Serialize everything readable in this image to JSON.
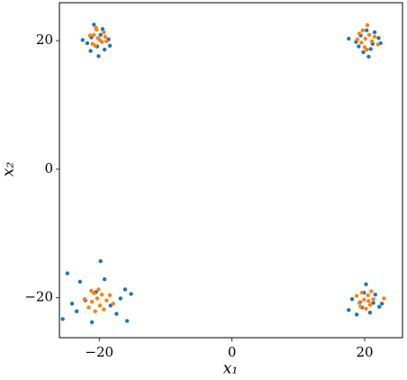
{
  "chart_data": {
    "type": "scatter",
    "xlabel": "x₁",
    "ylabel": "x₂",
    "xlim": [
      -26,
      25.7
    ],
    "ylim": [
      -26.2,
      25.9
    ],
    "xticks": [
      {
        "value": -20,
        "label": "−20"
      },
      0,
      20
    ],
    "yticks": [
      {
        "value": -20,
        "label": "−20"
      },
      0,
      20
    ],
    "series": [
      {
        "color": "#1f77b4",
        "x": [
          -21.2,
          -19.5,
          -20.3,
          -18.6,
          -21.8,
          -20.8,
          -19.2,
          -22.5,
          -20.1,
          -18.4,
          -21.3,
          -19.8,
          19.4,
          21.2,
          20.3,
          18.7,
          20.9,
          17.6,
          22.1,
          19.8,
          20.6,
          21.5,
          19.1,
          22.4,
          -24.8,
          -22.9,
          -19.8,
          -16.1,
          -15.2,
          -25.5,
          -23.4,
          -21.1,
          -17.4,
          -15.8,
          -18.3,
          -20.5,
          -22.1,
          -19.2,
          -24.1,
          -16.8,
          19.6,
          21.3,
          18.1,
          20.8,
          22.2,
          17.6,
          19.9,
          21.6,
          18.8,
          20.2,
          22.6,
          19.3
        ],
        "values": [
          20.5,
          21.8,
          19.1,
          20.2,
          19.6,
          22.5,
          18.6,
          20.1,
          17.6,
          19.2,
          18.4,
          20.9,
          20.8,
          19.5,
          21.6,
          19.8,
          18.7,
          20.3,
          20.4,
          18.2,
          17.5,
          21.3,
          19.1,
          19.6,
          -16.2,
          -17.5,
          -14.3,
          -18.7,
          -19.4,
          -23.3,
          -22.1,
          -23.8,
          -22.5,
          -23.6,
          -21.2,
          -19.1,
          -20.4,
          -17.1,
          -20.9,
          -20.1,
          -21.5,
          -20.8,
          -20.2,
          -22.3,
          -21.4,
          -21.9,
          -19.2,
          -19.5,
          -22.6,
          -17.9,
          -20.9,
          -20.7
        ]
      },
      {
        "color": "#ff7f0e",
        "x": [
          -20.2,
          -19.6,
          -20.8,
          -19.1,
          -21.0,
          -20.4,
          -19.3,
          -20.6,
          -18.9,
          -21.4,
          -19.9,
          -20.5,
          20.1,
          19.5,
          20.7,
          21.1,
          19.2,
          20.4,
          18.9,
          21.5,
          20.0,
          19.7,
          22.0,
          20.3,
          -20.3,
          -19.6,
          -21.1,
          -19.9,
          -20.8,
          -18.9,
          -21.6,
          -20.1,
          -19.3,
          -22.2,
          -18.4,
          -20.6,
          -17.9,
          -21.2,
          19.9,
          20.5,
          19.2,
          20.8,
          19.6,
          21.3,
          18.8,
          20.2,
          19.4,
          21.0,
          22.9,
          20.6
        ],
        "values": [
          20.4,
          19.8,
          20.9,
          20.6,
          19.5,
          21.7,
          21.3,
          19.2,
          19.9,
          20.8,
          20.1,
          22.0,
          20.3,
          19.7,
          20.9,
          19.9,
          21.1,
          22.4,
          20.2,
          20.6,
          19.0,
          21.6,
          19.4,
          18.6,
          -20.1,
          -19.5,
          -20.6,
          -21.2,
          -19.3,
          -20.4,
          -21.5,
          -18.7,
          -21.8,
          -20.2,
          -19.6,
          -22.1,
          -20.9,
          -18.9,
          -20.3,
          -19.6,
          -20.8,
          -21.1,
          -19.2,
          -20.2,
          -19.7,
          -21.7,
          -21.4,
          -19.0,
          -20.1,
          -20.5
        ]
      }
    ]
  }
}
